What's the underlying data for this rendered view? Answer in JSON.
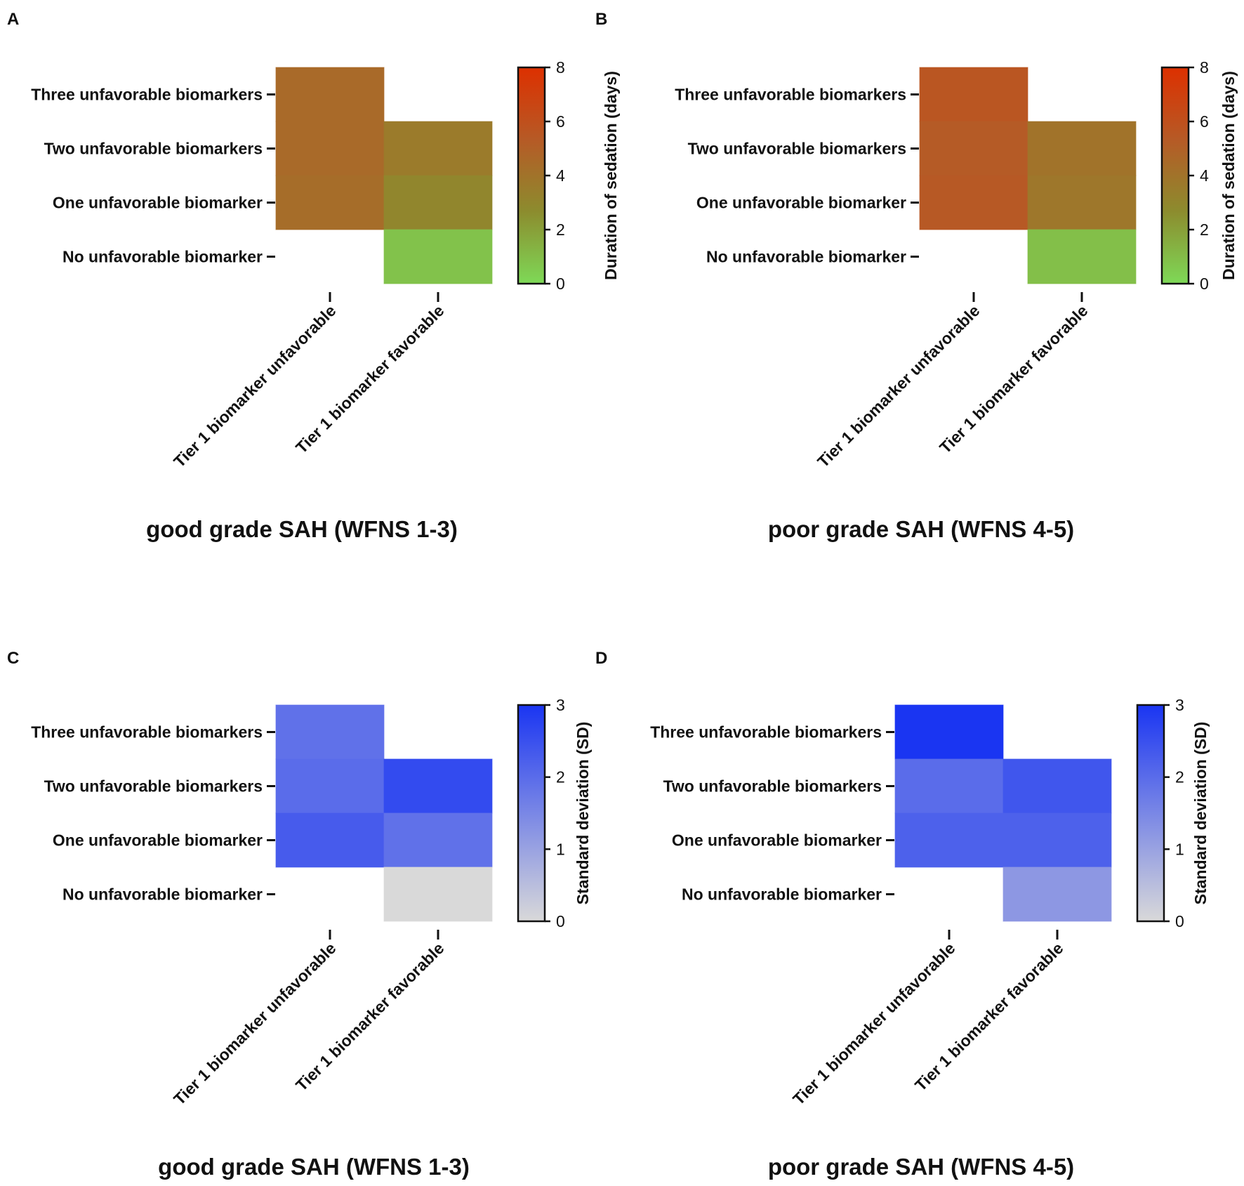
{
  "chart_data": [
    {
      "panel_label": "A",
      "type": "heatmap",
      "title": "good grade SAH (WFNS 1-3)",
      "rows": [
        "Three unfavorable biomarkers",
        "Two unfavorable biomarkers",
        "One unfavorable biomarker",
        "No unfavorable biomarker"
      ],
      "columns": [
        "Tier 1 biomarker unfavorable",
        "Tier 1 biomarker favorable"
      ],
      "values": [
        [
          4.5,
          null
        ],
        [
          4.5,
          3.6
        ],
        [
          4.3,
          3.0
        ],
        [
          null,
          0.8
        ]
      ],
      "colorbar": {
        "label": "Duration of sedation (days)",
        "range": [
          0,
          8
        ],
        "ticks": [
          0,
          2,
          4,
          6,
          8
        ],
        "colors": [
          "#7ed957",
          "#8c8c2e",
          "#b65a26",
          "#dd3000"
        ]
      }
    },
    {
      "panel_label": "B",
      "type": "heatmap",
      "title": "poor grade SAH (WFNS 4-5)",
      "rows": [
        "Three unfavorable biomarkers",
        "Two unfavorable biomarkers",
        "One unfavorable biomarker",
        "No unfavorable biomarker"
      ],
      "columns": [
        "Tier 1 biomarker unfavorable",
        "Tier 1 biomarker favorable"
      ],
      "values": [
        [
          5.6,
          null
        ],
        [
          5.3,
          4.0
        ],
        [
          5.4,
          3.8
        ],
        [
          null,
          0.9
        ]
      ],
      "colorbar": {
        "label": "Duration of sedation (days)",
        "range": [
          0,
          8
        ],
        "ticks": [
          0,
          2,
          4,
          6,
          8
        ],
        "colors": [
          "#7ed957",
          "#8c8c2e",
          "#b65a26",
          "#dd3000"
        ]
      }
    },
    {
      "panel_label": "C",
      "type": "heatmap",
      "title": "good grade SAH (WFNS 1-3)",
      "rows": [
        "Three unfavorable biomarkers",
        "Two unfavorable biomarkers",
        "One unfavorable biomarker",
        "No unfavorable biomarker"
      ],
      "columns": [
        "Tier 1 biomarker unfavorable",
        "Tier 1 biomarker favorable"
      ],
      "values": [
        [
          1.9,
          null
        ],
        [
          2.0,
          2.6
        ],
        [
          2.3,
          1.9
        ],
        [
          null,
          0.0
        ]
      ],
      "colorbar": {
        "label": "Standard deviation (SD)",
        "range": [
          0,
          3
        ],
        "ticks": [
          0,
          1,
          2,
          3
        ],
        "colors": [
          "#d9d9d9",
          "#1a35f2"
        ]
      }
    },
    {
      "panel_label": "D",
      "type": "heatmap",
      "title": "poor grade SAH (WFNS 4-5)",
      "rows": [
        "Three unfavorable biomarkers",
        "Two unfavorable biomarkers",
        "One unfavorable biomarker",
        "No unfavorable biomarker"
      ],
      "columns": [
        "Tier 1 biomarker unfavorable",
        "Tier 1 biomarker favorable"
      ],
      "values": [
        [
          3.0,
          null
        ],
        [
          2.0,
          2.4
        ],
        [
          2.2,
          2.2
        ],
        [
          null,
          1.2
        ]
      ],
      "colorbar": {
        "label": "Standard deviation (SD)",
        "range": [
          0,
          3
        ],
        "ticks": [
          0,
          1,
          2,
          3
        ],
        "colors": [
          "#d9d9d9",
          "#1a35f2"
        ]
      }
    }
  ]
}
